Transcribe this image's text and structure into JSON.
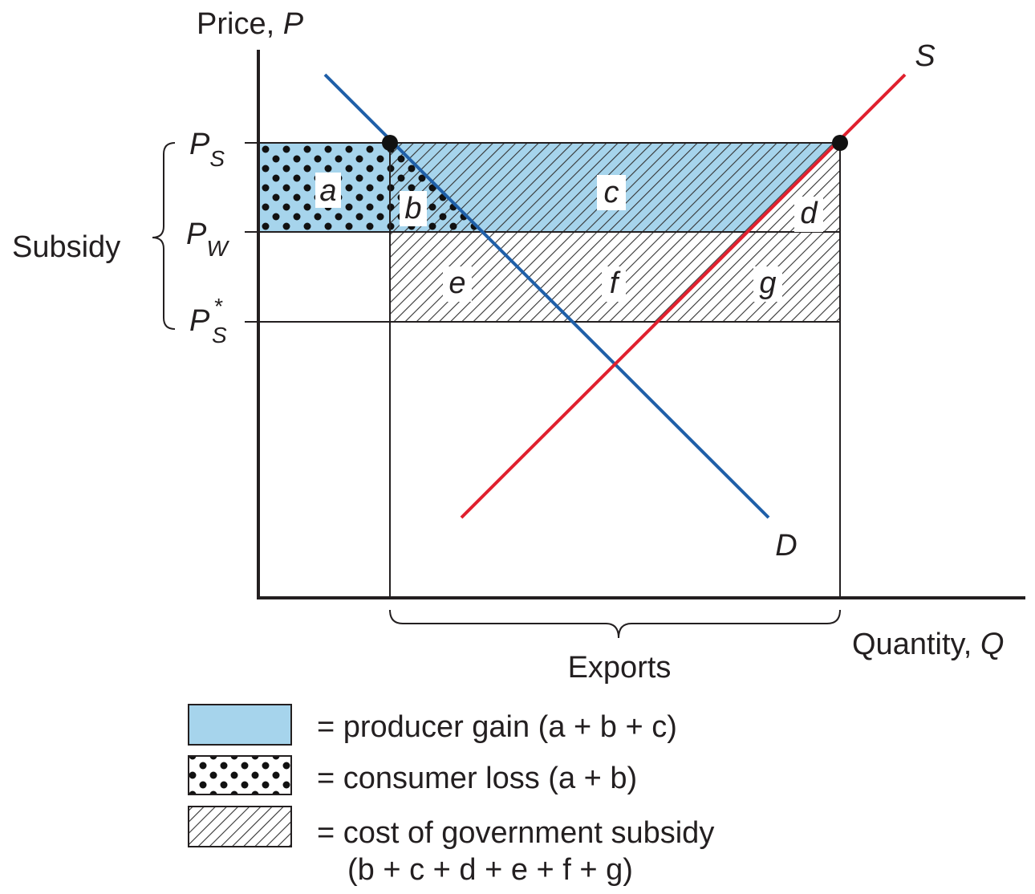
{
  "axes": {
    "y_label": {
      "text": "Price, ",
      "var": "P"
    },
    "x_label": {
      "text": "Quantity, ",
      "var": "Q"
    }
  },
  "curves": {
    "supply": "S",
    "demand": "D"
  },
  "prices": [
    {
      "symbol": "P",
      "sub": "S"
    },
    {
      "symbol": "P",
      "sub": "W"
    },
    {
      "symbol": "P",
      "sup": "*",
      "sub": "S"
    }
  ],
  "subsidy_label": "Subsidy",
  "exports_label": "Exports",
  "regions": [
    "a",
    "b",
    "c",
    "d",
    "e",
    "f",
    "g"
  ],
  "legend": [
    "= producer gain (a + b + c)",
    "= consumer loss (a + b)",
    "= cost of government subsidy",
    "(b + c + d + e + f + g)"
  ]
}
